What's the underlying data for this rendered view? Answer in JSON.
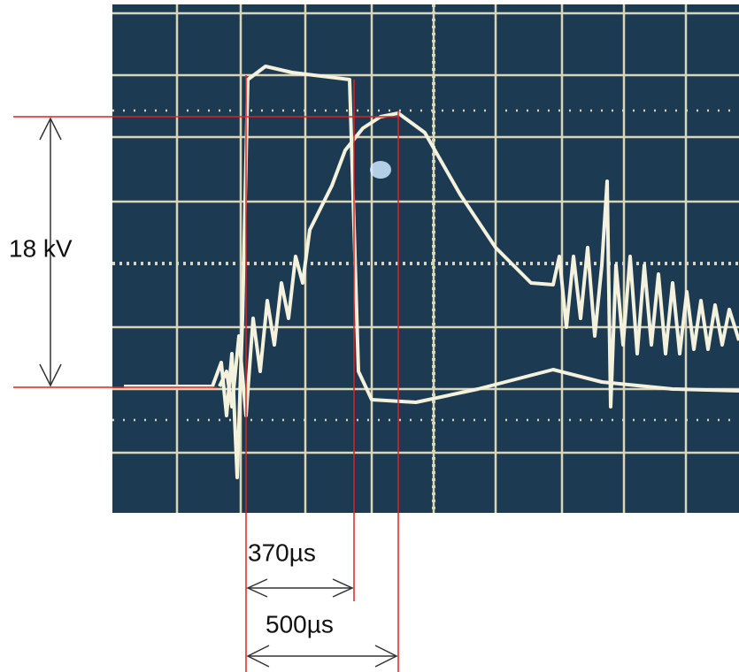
{
  "annotations": {
    "amplitude": "18 kV",
    "pulse_width": "370µs",
    "rise_time": "500µs"
  }
}
